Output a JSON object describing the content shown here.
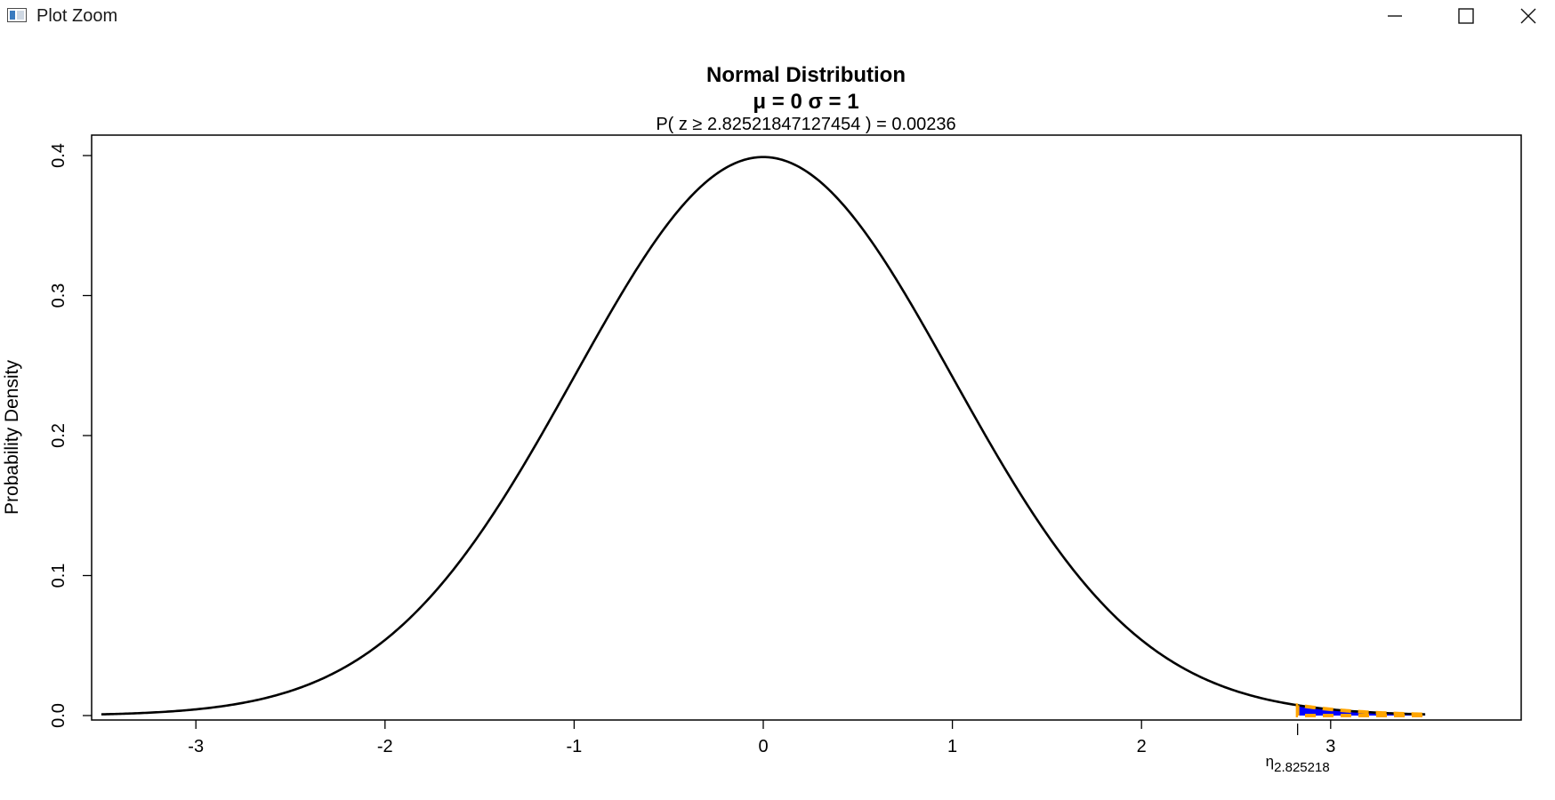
{
  "window": {
    "title": "Plot Zoom",
    "icons": {
      "app": "plot-window-icon",
      "minimize": "minimize-icon",
      "maximize": "maximize-icon",
      "close": "close-icon"
    }
  },
  "chart_data": {
    "type": "line",
    "title": "Normal Distribution",
    "params_line": "μ = 0  σ = 1",
    "subtitle": "P( z ≥  2.82521847127454  ) = 0.00236",
    "xlabel": "",
    "ylabel": "Probability Density",
    "xlim": [
      -3.5,
      3.5
    ],
    "ylim": [
      0,
      0.4
    ],
    "xticks": [
      -3,
      -2,
      -1,
      0,
      1,
      2,
      3
    ],
    "yticks": [
      0.0,
      0.1,
      0.2,
      0.3,
      0.4
    ],
    "ytick_labels": [
      "0.0",
      "0.1",
      "0.2",
      "0.3",
      "0.4"
    ],
    "grid": false,
    "distribution": {
      "mean": 0,
      "sd": 1
    },
    "critical_value": 2.825218,
    "critical_label_symbol": "η",
    "critical_label_sub": "2.825218",
    "probability": 0.00236,
    "shaded_region": {
      "from": 2.825218,
      "to": 3.5,
      "fill_color": "#0000ff",
      "border_color": "#ffa500"
    },
    "curve_color": "#000000"
  }
}
